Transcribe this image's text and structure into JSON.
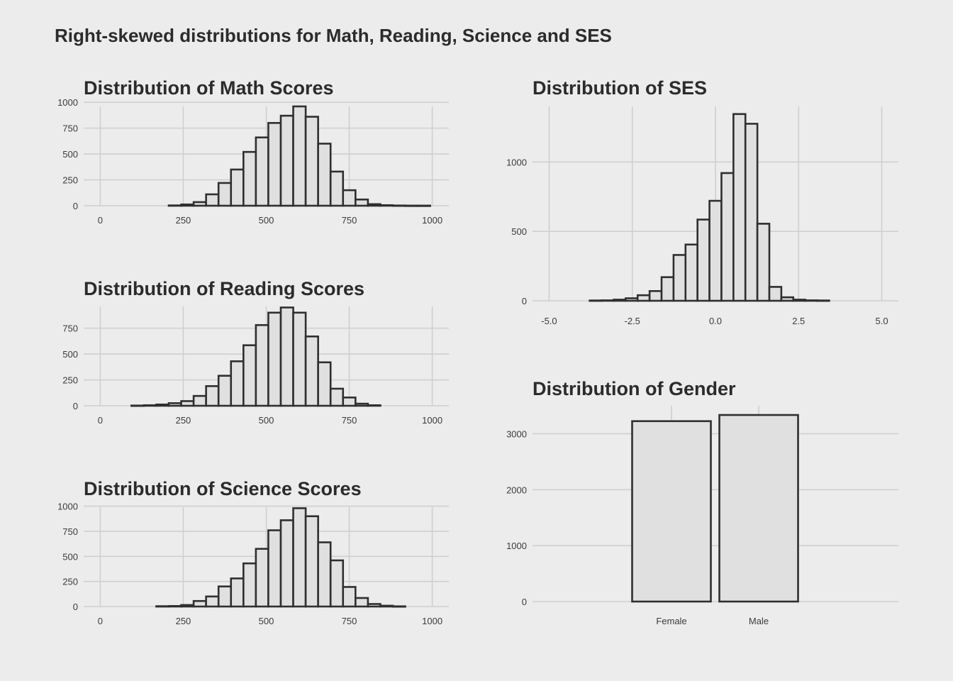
{
  "figure": {
    "title": "Right-skewed distributions for Math, Reading, Science and SES"
  },
  "colors": {
    "background": "#ececec",
    "bar_fill": "#e0e0e0",
    "bar_stroke": "#2f2f2f",
    "grid": "#cfcfcf"
  },
  "chart_data": [
    {
      "id": "math",
      "type": "bar",
      "title": "Distribution of Math Scores",
      "xlabel": "",
      "ylabel": "",
      "xlim": [
        -50,
        1050
      ],
      "ylim": [
        0,
        960
      ],
      "xticks": [
        0,
        250,
        500,
        750,
        1000
      ],
      "xtick_labels": [
        "0",
        "250",
        "500",
        "750",
        "1000"
      ],
      "yticks": [
        0,
        250,
        500,
        750,
        1000
      ],
      "ytick_labels": [
        "0",
        "250",
        "500",
        "750",
        "1000"
      ],
      "grid": true,
      "bin_width": 37.5,
      "x": [
        225,
        262.5,
        300,
        337.5,
        375,
        412.5,
        450,
        487.5,
        525,
        562.5,
        600,
        637.5,
        675,
        712.5,
        750,
        787.5,
        825,
        862.5,
        900,
        937.5,
        975
      ],
      "values": [
        3,
        12,
        35,
        110,
        220,
        350,
        520,
        660,
        800,
        870,
        960,
        860,
        600,
        330,
        150,
        60,
        15,
        5,
        2,
        1,
        1
      ]
    },
    {
      "id": "reading",
      "type": "bar",
      "title": "Distribution of Reading Scores",
      "xlabel": "",
      "ylabel": "",
      "xlim": [
        -50,
        1050
      ],
      "ylim": [
        0,
        960
      ],
      "xticks": [
        0,
        250,
        500,
        750,
        1000
      ],
      "xtick_labels": [
        "0",
        "250",
        "500",
        "750",
        "1000"
      ],
      "yticks": [
        0,
        250,
        500,
        750
      ],
      "ytick_labels": [
        "0",
        "250",
        "500",
        "750"
      ],
      "grid": true,
      "bin_width": 37.5,
      "x": [
        112.5,
        150,
        187.5,
        225,
        262.5,
        300,
        337.5,
        375,
        412.5,
        450,
        487.5,
        525,
        562.5,
        600,
        637.5,
        675,
        712.5,
        750,
        787.5,
        825
      ],
      "values": [
        2,
        5,
        12,
        25,
        45,
        95,
        190,
        290,
        430,
        585,
        780,
        900,
        950,
        900,
        670,
        420,
        165,
        80,
        20,
        5
      ]
    },
    {
      "id": "science",
      "type": "bar",
      "title": "Distribution of Science Scores",
      "xlabel": "",
      "ylabel": "",
      "xlim": [
        -50,
        1050
      ],
      "ylim": [
        0,
        990
      ],
      "xticks": [
        0,
        250,
        500,
        750,
        1000
      ],
      "xtick_labels": [
        "0",
        "250",
        "500",
        "750",
        "1000"
      ],
      "yticks": [
        0,
        250,
        500,
        750,
        1000
      ],
      "ytick_labels": [
        "0",
        "250",
        "500",
        "750",
        "1000"
      ],
      "grid": true,
      "bin_width": 37.5,
      "x": [
        187.5,
        225,
        262.5,
        300,
        337.5,
        375,
        412.5,
        450,
        487.5,
        525,
        562.5,
        600,
        637.5,
        675,
        712.5,
        750,
        787.5,
        825,
        862.5,
        900
      ],
      "values": [
        3,
        5,
        15,
        55,
        100,
        200,
        280,
        430,
        575,
        760,
        860,
        980,
        900,
        640,
        460,
        195,
        85,
        25,
        8,
        2
      ]
    },
    {
      "id": "ses",
      "type": "bar",
      "title": "Distribution of SES",
      "xlabel": "",
      "ylabel": "",
      "xlim": [
        -5.5,
        5.5
      ],
      "ylim": [
        0,
        1400
      ],
      "xticks": [
        -5,
        -2.5,
        0,
        2.5,
        5
      ],
      "xtick_labels": [
        "-5.0",
        "-2.5",
        "0.0",
        "2.5",
        "5.0"
      ],
      "yticks": [
        0,
        500,
        1000
      ],
      "ytick_labels": [
        "0",
        "500",
        "1000"
      ],
      "grid": true,
      "bin_width": 0.36,
      "x": [
        -3.6,
        -3.24,
        -2.88,
        -2.52,
        -2.16,
        -1.8,
        -1.44,
        -1.08,
        -0.72,
        -0.36,
        0,
        0.36,
        0.72,
        1.08,
        1.44,
        1.8,
        2.16,
        2.52,
        2.88,
        3.24
      ],
      "values": [
        2,
        3,
        8,
        18,
        40,
        70,
        170,
        330,
        405,
        585,
        720,
        920,
        1345,
        1275,
        555,
        100,
        25,
        8,
        3,
        2
      ]
    },
    {
      "id": "gender",
      "type": "bar",
      "title": "Distribution of Gender",
      "xlabel": "",
      "ylabel": "",
      "categories": [
        "Female",
        "Male"
      ],
      "values": [
        3225,
        3335
      ],
      "ylim": [
        0,
        3500
      ],
      "yticks": [
        0,
        1000,
        2000,
        3000
      ],
      "ytick_labels": [
        "0",
        "1000",
        "2000",
        "3000"
      ],
      "grid": true
    }
  ]
}
